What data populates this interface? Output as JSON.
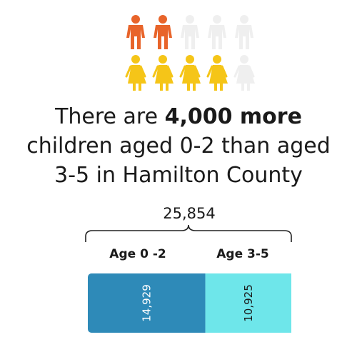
{
  "headline": {
    "pre": "There are ",
    "bold": "4,000 more",
    "line2": "children aged 0-2 than aged",
    "line3": "3-5 in Hamilton County"
  },
  "pictogram": {
    "rows": [
      {
        "icon": "boy-icon",
        "highlighted": 2,
        "total": 5,
        "color": "#e8642a",
        "muted": "#efefef"
      },
      {
        "icon": "girl-icon",
        "highlighted": 4,
        "total": 5,
        "color": "#f5c518",
        "muted": "#efefef"
      }
    ]
  },
  "chart_data": {
    "type": "bar",
    "orientation": "horizontal-stacked",
    "total_label": "25,854",
    "categories": [
      "Age 0 -2",
      "Age 3-5"
    ],
    "values": [
      14929,
      10925
    ],
    "value_labels": [
      "14,929",
      "10,925"
    ],
    "colors": [
      "#2e8ab8",
      "#6ee6ea"
    ]
  }
}
